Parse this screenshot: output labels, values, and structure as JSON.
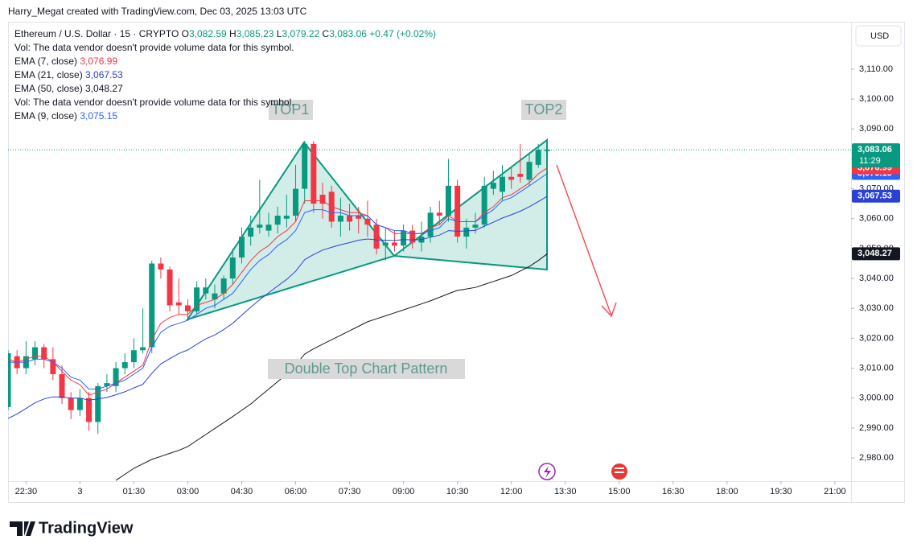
{
  "chart_data": {
    "type": "candlestick",
    "attribution": "Harry_Megat created with TradingView.com, Dec 03, 2025 13:03 UTC",
    "title": "Ethereum / U.S. Dollar · 15 · CRYPTO",
    "header_values": [
      {
        "prefix": "O",
        "value": 3082.59,
        "label": "3,082.59"
      },
      {
        "prefix": "H",
        "value": 3085.23,
        "label": "3,085.23"
      },
      {
        "prefix": "L",
        "value": 3079.22,
        "label": "3,079.22"
      },
      {
        "prefix": "C",
        "value": 3083.06,
        "label": "3,083.06"
      }
    ],
    "change": {
      "value": 0.47,
      "label": "+0.47"
    },
    "change_pct": {
      "value": 0.02,
      "label": "(+0.02%)"
    },
    "countdown": "11:29",
    "currency": "USD",
    "notes": [
      "Vol: The data vendor doesn't provide volume data for this symbol.",
      "Vol: The data vendor doesn't provide volume data for this symbol."
    ],
    "annotations": [
      "TOP1",
      "TOP2",
      "Double Top Chart Pattern"
    ],
    "brand": "TradingView",
    "up_color": "#089981",
    "down_color": "#f23645",
    "x": [
      "22:00",
      "22:15",
      "22:30",
      "22:45",
      "23:00",
      "23:15",
      "23:30",
      "23:45",
      "00:00",
      "00:15",
      "00:30",
      "00:45",
      "01:00",
      "01:15",
      "01:30",
      "01:45",
      "02:00",
      "02:15",
      "02:30",
      "02:45",
      "03:00",
      "03:15",
      "03:30",
      "03:45",
      "04:00",
      "04:15",
      "04:30",
      "04:45",
      "05:00",
      "05:15",
      "05:30",
      "05:45",
      "06:00",
      "06:15",
      "06:30",
      "06:45",
      "07:00",
      "07:15",
      "07:30",
      "07:45",
      "08:00",
      "08:15",
      "08:30",
      "08:45",
      "09:00",
      "09:15",
      "09:30",
      "09:45",
      "10:00",
      "10:15",
      "10:30",
      "10:45",
      "11:00",
      "11:15",
      "11:30",
      "11:45",
      "12:00",
      "12:15",
      "12:30",
      "12:45",
      "13:00"
    ],
    "open": [
      2997,
      3014,
      3010,
      3013,
      3017,
      3013,
      3008,
      3000,
      2996,
      3000,
      2992,
      3004,
      3004,
      3010,
      3012,
      3016,
      3017,
      3045,
      3043,
      3032,
      3031,
      3029,
      3035,
      3033,
      3035,
      3040,
      3047,
      3054,
      3057,
      3056,
      3058,
      3060,
      3061,
      3070,
      3085,
      3068,
      3069,
      3059,
      3061,
      3061,
      3060,
      3058,
      3051,
      3052,
      3051,
      3056,
      3052,
      3054,
      3062,
      3061,
      3071,
      3054,
      3057,
      3058,
      3070,
      3069,
      3074,
      3075,
      3073,
      3078,
      3082.59
    ],
    "high": [
      3016,
      3016,
      3019,
      3019,
      3018,
      3017,
      3011,
      3002,
      3003,
      3002,
      3005,
      3008,
      3012,
      3015,
      3020,
      3030,
      3046,
      3047,
      3044,
      3040,
      3033,
      3039,
      3040,
      3038,
      3041,
      3050,
      3057,
      3061,
      3073,
      3062,
      3064,
      3068,
      3078,
      3086,
      3086,
      3072,
      3071,
      3067,
      3065,
      3064,
      3066,
      3060,
      3057,
      3056,
      3058,
      3058,
      3059,
      3064,
      3066,
      3080,
      3073,
      3060,
      3062,
      3074,
      3076,
      3078,
      3077,
      3085,
      3082,
      3085,
      3085.23
    ],
    "low": [
      2996,
      3008,
      3008,
      3011,
      3010,
      3006,
      2998,
      2993,
      2994,
      2989,
      2988,
      3002,
      3002,
      3008,
      3010,
      3015,
      3015,
      3040,
      3029,
      3028,
      3026,
      3028,
      3033,
      3030,
      3033,
      3038,
      3045,
      3051,
      3055,
      3054,
      3055,
      3057,
      3059,
      3065,
      3062,
      3060,
      3057,
      3054,
      3056,
      3055,
      3054,
      3048,
      3046,
      3049,
      3049,
      3050,
      3049,
      3052,
      3058,
      3059,
      3052,
      3050,
      3055,
      3057,
      3068,
      3066,
      3070,
      3072,
      3071,
      3077,
      3079.22
    ],
    "close": [
      3015,
      3010,
      3014,
      3017,
      3013,
      3008,
      3000,
      2996,
      3000,
      2992,
      3004,
      3005,
      3010,
      3012,
      3016,
      3017,
      3045,
      3043,
      3031,
      3031,
      3029,
      3037,
      3037,
      3035,
      3040,
      3047,
      3054,
      3057,
      3058,
      3058,
      3061,
      3061,
      3070,
      3085,
      3065,
      3065,
      3059,
      3061,
      3059,
      3060,
      3058,
      3050,
      3052,
      3051,
      3056,
      3052,
      3054,
      3062,
      3061,
      3071,
      3054,
      3057,
      3058,
      3071,
      3072,
      3074,
      3073,
      3074,
      3079,
      3083,
      3083.06
    ],
    "series": [
      {
        "name": "EMA (7, close)",
        "color": "#f23645",
        "last_label": "3,076.99",
        "values": [
          3013,
          3012,
          3013,
          3014,
          3014,
          3012,
          3009,
          3006,
          3004.5,
          3001,
          3002,
          3003,
          3005,
          3007,
          3009,
          3011,
          3019.5,
          3025,
          3027,
          3028,
          3028,
          3031,
          3032,
          3033,
          3035,
          3038,
          3042,
          3046,
          3049,
          3051,
          3054,
          3056,
          3059,
          3066,
          3066,
          3066,
          3064,
          3063,
          3062,
          3062,
          3061,
          3058,
          3057,
          3055,
          3055,
          3055,
          3055,
          3057,
          3058,
          3061,
          3059,
          3059,
          3059,
          3062,
          3064,
          3067,
          3068,
          3070,
          3072,
          3075,
          3076.99
        ]
      },
      {
        "name": "EMA (21, close)",
        "color": "#2941d6",
        "last_label": "3,067.53",
        "values": [
          2993.2,
          2994.7,
          2996.5,
          2998.4,
          2999.7,
          3000.4,
          3000.4,
          3000,
          3000,
          2999.3,
          2999.7,
          3000.2,
          3001.1,
          3002.1,
          3003.4,
          3004.6,
          3008.3,
          3011.4,
          3013.2,
          3014.9,
          3016.1,
          3018,
          3019.8,
          3021.1,
          3022.9,
          3025,
          3027.7,
          3030.4,
          3032.9,
          3035.2,
          3037.5,
          3039.7,
          3042.4,
          3046.3,
          3048,
          3049.5,
          3050.4,
          3051.3,
          3052,
          3052.8,
          3053.2,
          3052.9,
          3052.8,
          3052.7,
          3053,
          3052.9,
          3053,
          3053.8,
          3054.5,
          3056,
          3055.8,
          3055.9,
          3056.1,
          3057.5,
          3058.8,
          3060.2,
          3061.3,
          3062.5,
          3064,
          3065.7,
          3067.53
        ]
      },
      {
        "name": "EMA (50, close)",
        "color": "#131722",
        "last_label": "3,048.27",
        "values": [
          null,
          null,
          null,
          null,
          null,
          null,
          null,
          null,
          null,
          null,
          null,
          null,
          2972.5,
          2974.5,
          2976.5,
          2978,
          2979.5,
          2980.5,
          2981.5,
          2982.5,
          2983.8,
          2985.8,
          2987.8,
          2989.8,
          2991.8,
          2993.8,
          2995.9,
          2998,
          3000.5,
          3003,
          3005.5,
          3008,
          3011,
          3014.7,
          3016.5,
          3018,
          3019.5,
          3021,
          3022.5,
          3024,
          3025.5,
          3026.5,
          3027.5,
          3028.5,
          3029.5,
          3030.5,
          3031.5,
          3032.5,
          3033.7,
          3034.9,
          3036,
          3036.5,
          3037,
          3038,
          3039,
          3040,
          3041,
          3042.5,
          3044,
          3046,
          3048.27
        ]
      },
      {
        "name": "EMA (9, close)",
        "color": "#2962ff",
        "last_label": "3,075.15",
        "values": [
          3012,
          3012,
          3012,
          3013,
          3013,
          3012,
          3010,
          3007,
          3006,
          3003,
          3003,
          3004,
          3005,
          3006,
          3008,
          3010,
          3017,
          3022,
          3024,
          3025,
          3026,
          3028,
          3030,
          3031,
          3033,
          3035,
          3039,
          3043,
          3046,
          3048,
          3051,
          3053,
          3056,
          3062,
          3063,
          3063,
          3062,
          3062,
          3061,
          3061,
          3061,
          3058,
          3057,
          3056,
          3056,
          3055,
          3055,
          3056,
          3057,
          3060,
          3059,
          3059,
          3059,
          3061,
          3063,
          3066,
          3067,
          3069,
          3071,
          3073,
          3075.15
        ]
      }
    ],
    "xlim": [
      "22:00",
      "21:27"
    ],
    "xticks": [
      {
        "value": "22:30",
        "label": "22:30"
      },
      {
        "value": "00:00",
        "label": "3"
      },
      {
        "value": "01:30",
        "label": "01:30"
      },
      {
        "value": "03:00",
        "label": "03:00"
      },
      {
        "value": "04:30",
        "label": "04:30"
      },
      {
        "value": "06:00",
        "label": "06:00"
      },
      {
        "value": "07:30",
        "label": "07:30"
      },
      {
        "value": "09:00",
        "label": "09:00"
      },
      {
        "value": "10:30",
        "label": "10:30"
      },
      {
        "value": "12:00",
        "label": "12:00"
      },
      {
        "value": "13:30",
        "label": "13:30"
      },
      {
        "value": "15:00",
        "label": "15:00"
      },
      {
        "value": "16:30",
        "label": "16:30"
      },
      {
        "value": "18:00",
        "label": "18:00"
      },
      {
        "value": "19:30",
        "label": "19:30"
      },
      {
        "value": "21:00",
        "label": "21:00"
      }
    ],
    "ylim": [
      2972.2,
      3125.6
    ],
    "yticks": [
      {
        "value": 2980,
        "label": "2,980.00"
      },
      {
        "value": 2990,
        "label": "2,990.00"
      },
      {
        "value": 3000,
        "label": "3,000.00"
      },
      {
        "value": 3010,
        "label": "3,010.00"
      },
      {
        "value": 3020,
        "label": "3,020.00"
      },
      {
        "value": 3030,
        "label": "3,030.00"
      },
      {
        "value": 3040,
        "label": "3,040.00"
      },
      {
        "value": 3050,
        "label": "3,050.00"
      },
      {
        "value": 3060,
        "label": "3,060.00"
      },
      {
        "value": 3070,
        "label": "3,070.00"
      },
      {
        "value": 3080,
        "label": "3,080.00"
      },
      {
        "value": 3090,
        "label": "3,090.00"
      },
      {
        "value": 3100,
        "label": "3,100.00"
      },
      {
        "value": 3110,
        "label": "3,110.00"
      }
    ]
  }
}
